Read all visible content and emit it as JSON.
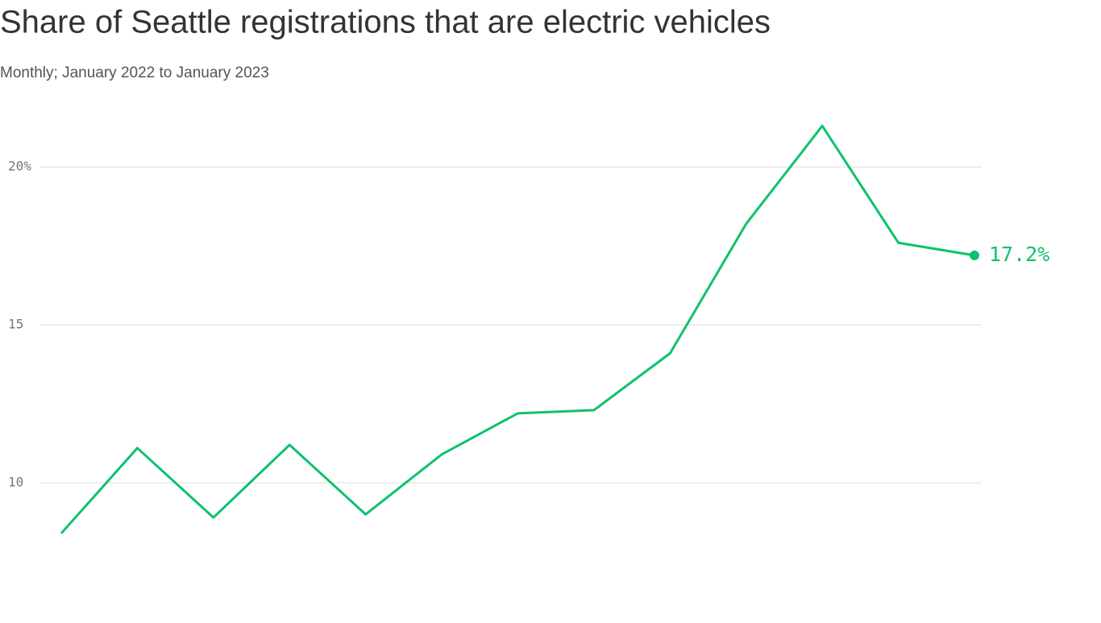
{
  "chart_data": {
    "type": "line",
    "title": "Share of Seattle registrations that are electric vehicles",
    "subtitle": "Monthly; January 2022 to January 2023",
    "categories": [
      null,
      null,
      null,
      null,
      null,
      null,
      null,
      null,
      null,
      null,
      null,
      null,
      null
    ],
    "series": [
      {
        "color": "#0ec26b",
        "values": [
          8.4,
          11.1,
          8.9,
          11.2,
          9.0,
          10.9,
          12.2,
          12.3,
          14.1,
          18.2,
          21.3,
          17.6,
          17.2
        ],
        "value_labels": [
          null,
          null,
          null,
          null,
          null,
          null,
          null,
          null,
          null,
          null,
          null,
          null,
          "17.2%"
        ]
      }
    ],
    "ylim": [
      7,
      22.5
    ],
    "yticks": [
      10,
      15,
      {
        "value": 20,
        "label": "20%"
      }
    ],
    "grid": true
  }
}
